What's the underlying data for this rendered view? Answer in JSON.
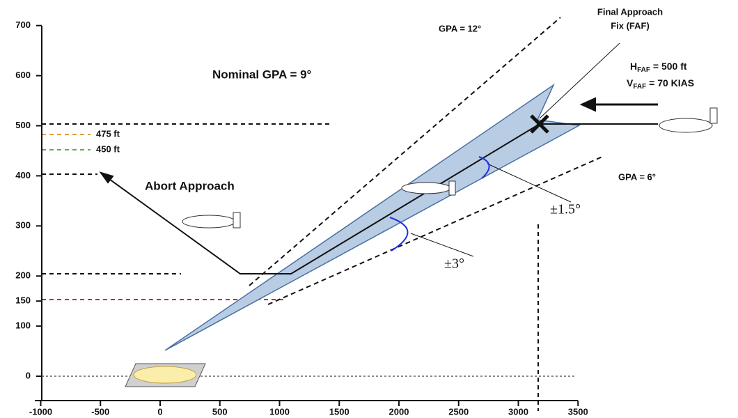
{
  "axes": {
    "x_ticks": [
      -1000,
      -500,
      0,
      500,
      1000,
      1500,
      2000,
      2500,
      3000,
      3500
    ],
    "y_ticks": [
      0,
      100,
      150,
      200,
      300,
      400,
      500,
      600,
      700
    ]
  },
  "labels": {
    "faf_line1": "Final Approach",
    "faf_line2": "Fix (FAF)",
    "gpa12": "GPA = 12°",
    "nominal": "Nominal GPA = 9°",
    "gpa6": "GPA = 6°",
    "tol15": "±1.5°",
    "tol3": "±3°",
    "abort": "Abort Approach",
    "ft475": "475 ft",
    "ft450": "450 ft",
    "h_sym": "H",
    "h_sub": "FAF",
    "h_val": " = 500 ft",
    "v_sym": "V",
    "v_sub": "FAF",
    "v_val": " =  70 KIAS"
  }
}
